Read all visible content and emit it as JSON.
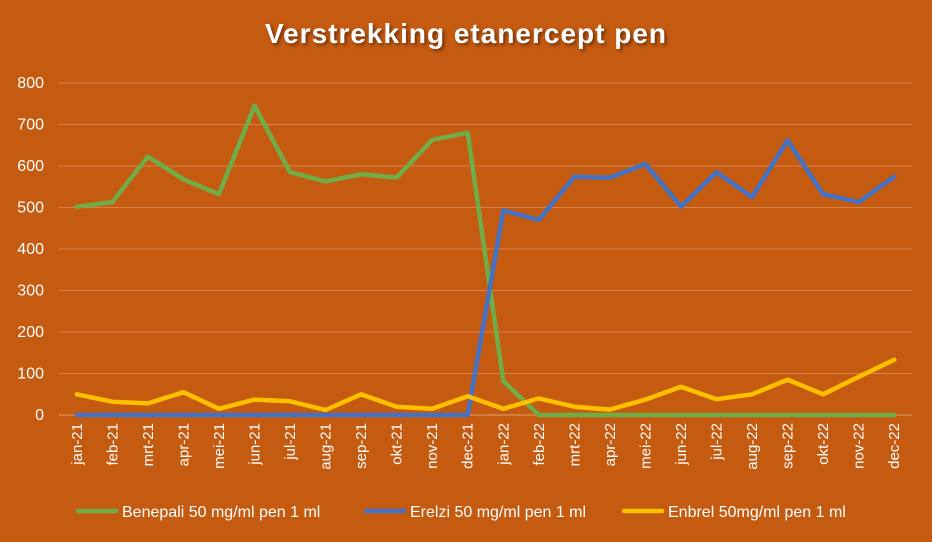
{
  "chart_data": {
    "type": "line",
    "title": "Verstrekking etanercept pen",
    "categories": [
      "jan-21",
      "feb-21",
      "mrt-21",
      "apr-21",
      "mei-21",
      "jun-21",
      "jul-21",
      "aug-21",
      "sep-21",
      "okt-21",
      "nov-21",
      "dec-21",
      "jan-22",
      "feb-22",
      "mrt-22",
      "apr-22",
      "mei-22",
      "jun-22",
      "jul-22",
      "aug-22",
      "sep-22",
      "okt-22",
      "nov-22",
      "dec-22"
    ],
    "ylim": [
      0,
      800
    ],
    "yticks": [
      0,
      100,
      200,
      300,
      400,
      500,
      600,
      700,
      800
    ],
    "grid": true,
    "legend_position": "bottom",
    "series": [
      {
        "name": "Benepali 50 mg/ml pen 1 ml",
        "color": "#70ad47",
        "values": [
          502,
          513,
          623,
          568,
          532,
          745,
          585,
          563,
          580,
          572,
          663,
          680,
          82,
          0,
          0,
          0,
          0,
          0,
          0,
          0,
          0,
          0,
          0,
          0
        ]
      },
      {
        "name": "Erelzi 50 mg/ml pen 1 ml",
        "color": "#4472c4",
        "values": [
          0,
          0,
          0,
          0,
          0,
          0,
          0,
          0,
          0,
          0,
          0,
          0,
          493,
          470,
          574,
          572,
          605,
          502,
          585,
          525,
          662,
          532,
          513,
          574
        ]
      },
      {
        "name": "Enbrel 50mg/ml pen 1 ml",
        "color": "#ffc000",
        "values": [
          50,
          32,
          28,
          55,
          15,
          37,
          33,
          12,
          50,
          20,
          15,
          45,
          15,
          40,
          20,
          13,
          37,
          68,
          38,
          50,
          85,
          50,
          92,
          133
        ]
      }
    ]
  }
}
